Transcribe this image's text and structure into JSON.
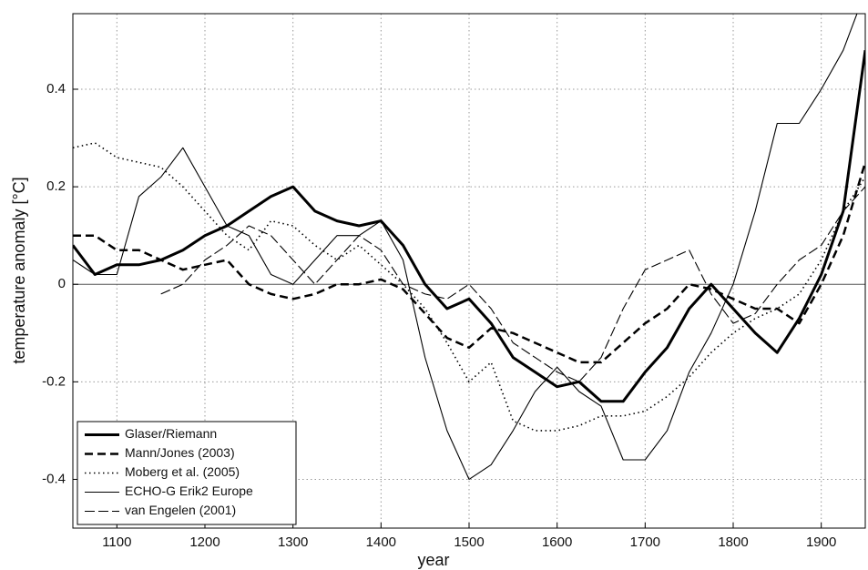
{
  "chart_data": {
    "type": "line",
    "xlabel": "year",
    "ylabel": "temperature anomaly [°C]",
    "x": [
      1050,
      1075,
      1100,
      1125,
      1150,
      1175,
      1200,
      1225,
      1250,
      1275,
      1300,
      1325,
      1350,
      1375,
      1400,
      1425,
      1450,
      1475,
      1500,
      1525,
      1550,
      1575,
      1600,
      1625,
      1650,
      1675,
      1700,
      1725,
      1750,
      1775,
      1800,
      1825,
      1850,
      1875,
      1900,
      1925,
      1950
    ],
    "xlim": [
      1050,
      1950
    ],
    "xticks": [
      1100,
      1200,
      1300,
      1400,
      1500,
      1600,
      1700,
      1800,
      1900
    ],
    "ylim": [
      -0.5,
      0.555
    ],
    "yticks": [
      -0.4,
      -0.2,
      0,
      0.2,
      0.4
    ],
    "grid": true,
    "zero_line": true,
    "legend": "lower left",
    "series": [
      {
        "name": "Glaser/Riemann",
        "color": "#000000",
        "width": 3,
        "dash": "solid",
        "values": [
          0.08,
          0.02,
          0.04,
          0.04,
          0.05,
          0.07,
          0.1,
          0.12,
          0.15,
          0.18,
          0.2,
          0.15,
          0.13,
          0.12,
          0.13,
          0.08,
          0.0,
          -0.05,
          -0.03,
          -0.08,
          -0.15,
          -0.18,
          -0.21,
          -0.2,
          -0.24,
          -0.24,
          -0.18,
          -0.13,
          -0.05,
          0.0,
          -0.05,
          -0.1,
          -0.14,
          -0.07,
          0.02,
          0.15,
          0.48
        ]
      },
      {
        "name": "Mann/Jones (2003)",
        "color": "#000000",
        "width": 2.5,
        "dash": "dashed",
        "values": [
          0.1,
          0.1,
          0.07,
          0.07,
          0.05,
          0.03,
          0.04,
          0.05,
          0.0,
          -0.02,
          -0.03,
          -0.02,
          0.0,
          0.0,
          0.01,
          -0.01,
          -0.06,
          -0.11,
          -0.13,
          -0.09,
          -0.1,
          -0.12,
          -0.14,
          -0.16,
          -0.16,
          -0.12,
          -0.08,
          -0.05,
          0.0,
          -0.01,
          -0.03,
          -0.05,
          -0.05,
          -0.08,
          0.0,
          0.1,
          0.25
        ]
      },
      {
        "name": "Moberg et al. (2005)",
        "color": "#000000",
        "width": 1.6,
        "dash": "dotted",
        "values": [
          0.28,
          0.29,
          0.26,
          0.25,
          0.24,
          0.2,
          0.15,
          0.1,
          0.07,
          0.13,
          0.12,
          0.08,
          0.05,
          0.08,
          0.04,
          0.0,
          -0.05,
          -0.12,
          -0.2,
          -0.16,
          -0.28,
          -0.3,
          -0.3,
          -0.29,
          -0.27,
          -0.27,
          -0.26,
          -0.23,
          -0.19,
          -0.14,
          -0.1,
          -0.07,
          -0.05,
          -0.02,
          0.05,
          0.15,
          0.22
        ]
      },
      {
        "name": "ECHO-G Erik2 Europe",
        "color": "#000000",
        "width": 1.1,
        "dash": "solid",
        "values": [
          0.05,
          0.02,
          0.02,
          0.18,
          0.22,
          0.28,
          0.2,
          0.12,
          0.1,
          0.02,
          0.0,
          0.05,
          0.1,
          0.1,
          0.13,
          0.05,
          -0.15,
          -0.3,
          -0.4,
          -0.37,
          -0.3,
          -0.22,
          -0.17,
          -0.22,
          -0.25,
          -0.36,
          -0.36,
          -0.3,
          -0.18,
          -0.1,
          0.0,
          0.15,
          0.33,
          0.33,
          0.4,
          0.48,
          0.6
        ]
      },
      {
        "name": "van Engelen (2001)",
        "color": "#000000",
        "width": 1.1,
        "dash": "longdash",
        "values": [
          null,
          null,
          null,
          null,
          -0.02,
          0.0,
          0.05,
          0.08,
          0.12,
          0.1,
          0.05,
          0.0,
          0.05,
          0.1,
          0.07,
          0.0,
          -0.02,
          -0.03,
          0.0,
          -0.05,
          -0.12,
          -0.15,
          -0.18,
          -0.2,
          -0.15,
          -0.05,
          0.03,
          0.05,
          0.07,
          -0.02,
          -0.08,
          -0.06,
          0.0,
          0.05,
          0.08,
          0.15,
          0.2
        ]
      }
    ]
  }
}
